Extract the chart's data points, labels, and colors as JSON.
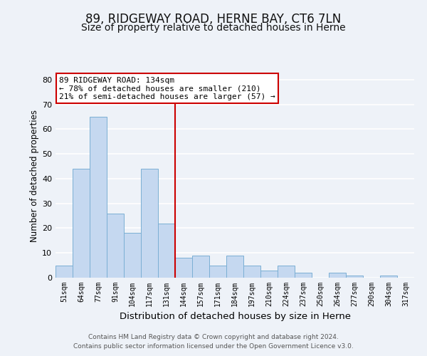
{
  "title": "89, RIDGEWAY ROAD, HERNE BAY, CT6 7LN",
  "subtitle": "Size of property relative to detached houses in Herne",
  "xlabel": "Distribution of detached houses by size in Herne",
  "ylabel": "Number of detached properties",
  "bin_labels": [
    "51sqm",
    "64sqm",
    "77sqm",
    "91sqm",
    "104sqm",
    "117sqm",
    "131sqm",
    "144sqm",
    "157sqm",
    "171sqm",
    "184sqm",
    "197sqm",
    "210sqm",
    "224sqm",
    "237sqm",
    "250sqm",
    "264sqm",
    "277sqm",
    "290sqm",
    "304sqm",
    "317sqm"
  ],
  "bar_values": [
    5,
    44,
    65,
    26,
    18,
    44,
    22,
    8,
    9,
    5,
    9,
    5,
    3,
    5,
    2,
    0,
    2,
    1,
    0,
    1,
    0
  ],
  "bar_color": "#c5d8f0",
  "bar_edge_color": "#7bafd4",
  "vline_x": 6.5,
  "vline_color": "#cc0000",
  "annotation_title": "89 RIDGEWAY ROAD: 134sqm",
  "annotation_line1": "← 78% of detached houses are smaller (210)",
  "annotation_line2": "21% of semi-detached houses are larger (57) →",
  "annotation_box_color": "#ffffff",
  "annotation_box_edge": "#cc0000",
  "ylim": [
    0,
    82
  ],
  "yticks": [
    0,
    10,
    20,
    30,
    40,
    50,
    60,
    70,
    80
  ],
  "footer1": "Contains HM Land Registry data © Crown copyright and database right 2024.",
  "footer2": "Contains public sector information licensed under the Open Government Licence v3.0.",
  "bg_color": "#eef2f8",
  "grid_color": "#ffffff",
  "title_fontsize": 12,
  "subtitle_fontsize": 10,
  "xlabel_fontsize": 9.5,
  "ylabel_fontsize": 8.5,
  "footer_fontsize": 6.5,
  "ann_fontsize": 8
}
